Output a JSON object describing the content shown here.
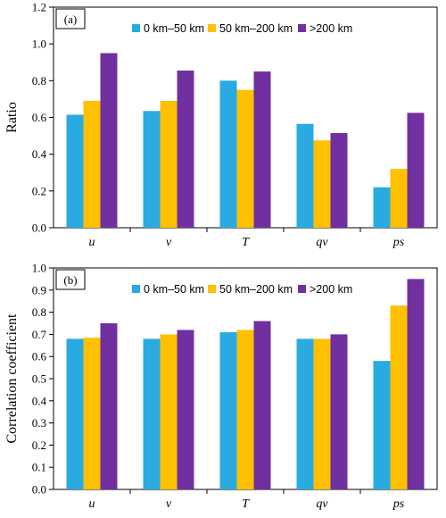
{
  "chart_data": [
    {
      "type": "bar",
      "panel_label": "(a)",
      "ylabel": "Ratio",
      "xlabel": "",
      "ylim": [
        0,
        1.2
      ],
      "yticks": [
        "0.0",
        "0.2",
        "0.4",
        "0.6",
        "0.8",
        "1.0",
        "1.2"
      ],
      "categories": [
        "u",
        "v",
        "T",
        "qv",
        "ps"
      ],
      "legend_position": "top-center",
      "series": [
        {
          "name": "0 km–50 km",
          "color": "#29ABE2",
          "values": [
            0.615,
            0.635,
            0.8,
            0.565,
            0.22
          ]
        },
        {
          "name": "50 km–200 km",
          "color": "#FFC000",
          "values": [
            0.69,
            0.69,
            0.75,
            0.475,
            0.32
          ]
        },
        {
          "name": ">200 km",
          "color": "#7030A0",
          "values": [
            0.95,
            0.855,
            0.85,
            0.515,
            0.625
          ]
        }
      ]
    },
    {
      "type": "bar",
      "panel_label": "(b)",
      "ylabel": "Correlation coefficient",
      "xlabel": "",
      "ylim": [
        0,
        1.0
      ],
      "yticks": [
        "0.0",
        "0.1",
        "0.2",
        "0.3",
        "0.4",
        "0.5",
        "0.6",
        "0.7",
        "0.8",
        "0.9",
        "1.0"
      ],
      "categories": [
        "u",
        "v",
        "T",
        "qv",
        "ps"
      ],
      "legend_position": "top-center",
      "series": [
        {
          "name": "0 km–50 km",
          "color": "#29ABE2",
          "values": [
            0.68,
            0.68,
            0.71,
            0.68,
            0.58
          ]
        },
        {
          "name": "50 km–200 km",
          "color": "#FFC000",
          "values": [
            0.685,
            0.7,
            0.72,
            0.68,
            0.83
          ]
        },
        {
          "name": ">200 km",
          "color": "#7030A0",
          "values": [
            0.75,
            0.72,
            0.76,
            0.7,
            0.95
          ]
        }
      ]
    }
  ]
}
